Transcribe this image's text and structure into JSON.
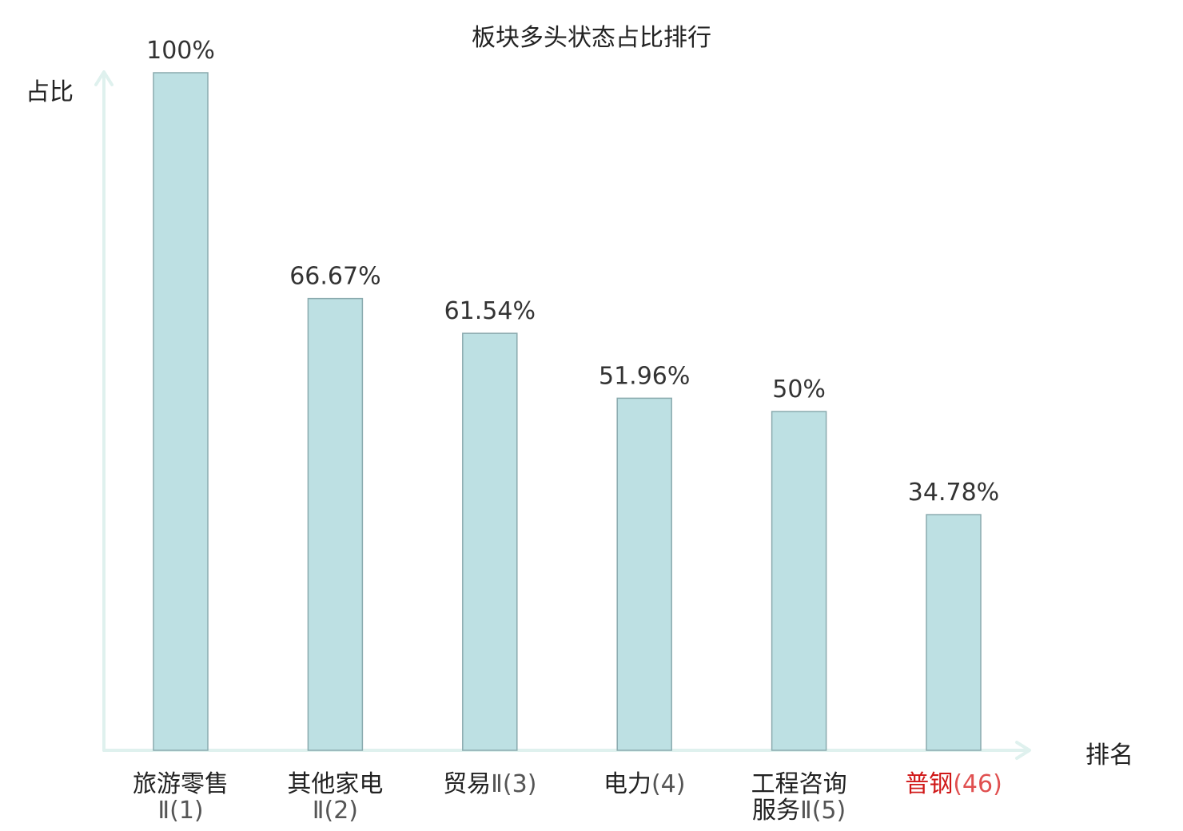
{
  "chart_data": {
    "type": "bar",
    "title": "板块多头状态占比排行",
    "ylabel": "占比",
    "xlabel": "排名",
    "ylim": [
      0,
      100
    ],
    "grid": false,
    "categories": [
      {
        "name": "旅游零售",
        "code": "Ⅱ(1)",
        "line2": "Ⅱ(1)",
        "highlight": false
      },
      {
        "name": "其他家电",
        "code": "Ⅱ(2)",
        "line2": "Ⅱ(2)",
        "highlight": false
      },
      {
        "name": "贸易",
        "code": "Ⅱ(3)",
        "line2": "",
        "highlight": false
      },
      {
        "name": "电力",
        "code": "(4)",
        "line2": "",
        "highlight": false
      },
      {
        "name": "工程咨询",
        "line1b": "服务",
        "code": "Ⅱ(5)",
        "highlight": false
      },
      {
        "name": "普钢",
        "code": "(46)",
        "line2": "",
        "highlight": true
      }
    ],
    "values": [
      100,
      66.67,
      61.54,
      51.96,
      50,
      34.78
    ],
    "value_labels": [
      "100%",
      "66.67%",
      "61.54%",
      "51.96%",
      "50%",
      "34.78%"
    ],
    "colors": {
      "bar_fill": "#bde0e3",
      "bar_stroke": "#8aaaae",
      "axis": "#dff1ee",
      "highlight_text": "#d01818"
    }
  }
}
